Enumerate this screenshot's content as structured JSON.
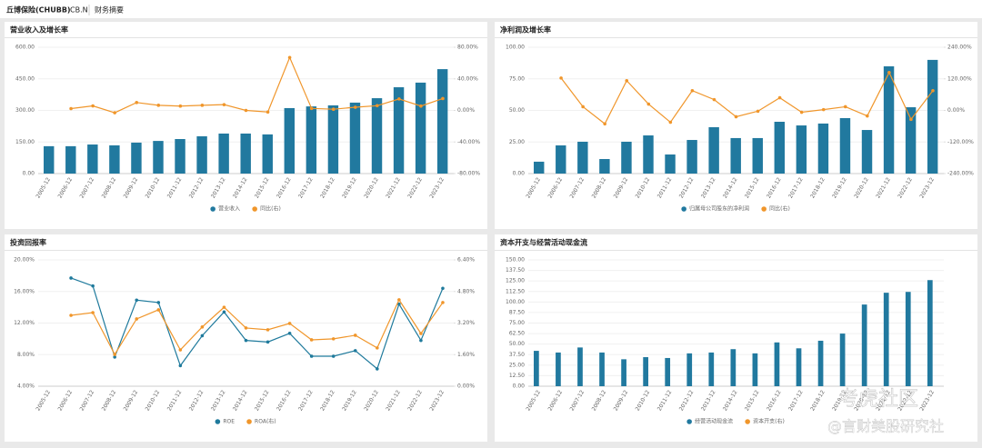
{
  "header": {
    "company": "丘博保险(CHUBB)",
    "ticker": "CB.N",
    "tab": "财务摘要"
  },
  "watermark": {
    "line1": "考虎社区",
    "line2": "@言财美股研究社"
  },
  "chart_data": [
    {
      "type": "combo",
      "title": "营业收入及增长率",
      "categories": [
        "2005-12",
        "2006-12",
        "2007-12",
        "2008-12",
        "2009-12",
        "2010-12",
        "2011-12",
        "2012-12",
        "2013-12",
        "2014-12",
        "2015-12",
        "2016-12",
        "2017-12",
        "2018-12",
        "2019-12",
        "2020-12",
        "2021-12",
        "2022-12",
        "2023-12"
      ],
      "series": [
        {
          "name": "营业收入",
          "color": "#21799f",
          "axis": "y",
          "values": [
            130,
            130,
            138,
            134,
            147,
            155,
            164,
            177,
            190,
            190,
            186,
            311,
            319,
            324,
            337,
            358,
            410,
            432,
            496
          ]
        },
        {
          "name": "同比(右)",
          "color": "#f0962b",
          "axis": "y2",
          "values": [
            null,
            2.3,
            5.7,
            -3,
            10,
            6.5,
            5.5,
            6.5,
            7.3,
            0,
            -2,
            67,
            2.5,
            1.5,
            4,
            6,
            14.5,
            5.5,
            15
          ]
        }
      ],
      "ylim": [
        0,
        600
      ],
      "yticks": [
        {
          "value": 0,
          "label": "0.00"
        },
        {
          "value": 150,
          "label": "150.00"
        },
        {
          "value": 300,
          "label": "300.00"
        },
        {
          "value": 450,
          "label": "450.00"
        },
        {
          "value": 600,
          "label": "600.00"
        }
      ],
      "y2lim": [
        -80,
        80
      ],
      "y2ticks": [
        {
          "value": -80,
          "label": "-80.00%"
        },
        {
          "value": -40,
          "label": "-40.00%"
        },
        {
          "value": 0,
          "label": "0.00%"
        },
        {
          "value": 40,
          "label": "40.00%"
        },
        {
          "value": 80,
          "label": "80.00%"
        }
      ],
      "grid": true
    },
    {
      "type": "combo",
      "title": "净利润及增长率",
      "categories": [
        "2005-12",
        "2006-12",
        "2007-12",
        "2008-12",
        "2009-12",
        "2010-12",
        "2011-12",
        "2012-12",
        "2013-12",
        "2014-12",
        "2015-12",
        "2016-12",
        "2017-12",
        "2018-12",
        "2019-12",
        "2020-12",
        "2021-12",
        "2022-12",
        "2023-12"
      ],
      "series": [
        {
          "name": "归属母公司股东的净利润",
          "color": "#21799f",
          "axis": "y",
          "values": [
            9.4,
            22.3,
            25.2,
            11.5,
            25.2,
            30.2,
            15.1,
            26.6,
            36.7,
            28.1,
            28.1,
            41,
            38.1,
            39.6,
            43.9,
            34.5,
            84.9,
            52.5,
            90
          ]
        },
        {
          "name": "同比(右)",
          "color": "#f0962b",
          "axis": "y2",
          "values": [
            null,
            123,
            14,
            -51,
            113,
            24,
            -45,
            75,
            41,
            -24,
            -3,
            48,
            -7,
            3,
            14,
            -21,
            144,
            -34,
            75
          ]
        }
      ],
      "ylim": [
        0,
        100
      ],
      "yticks": [
        {
          "value": 0,
          "label": "0.00"
        },
        {
          "value": 25,
          "label": "25.00"
        },
        {
          "value": 50,
          "label": "50.00"
        },
        {
          "value": 75,
          "label": "75.00"
        },
        {
          "value": 100,
          "label": "100.00"
        }
      ],
      "y2lim": [
        -240,
        240
      ],
      "y2ticks": [
        {
          "value": -240,
          "label": "-240.00%"
        },
        {
          "value": -120,
          "label": "-120.00%"
        },
        {
          "value": 0,
          "label": "0.00%"
        },
        {
          "value": 120,
          "label": "120.00%"
        },
        {
          "value": 240,
          "label": "240.00%"
        }
      ],
      "grid": true
    },
    {
      "type": "line",
      "title": "投资回报率",
      "categories": [
        "2005-12",
        "2006-12",
        "2007-12",
        "2008-12",
        "2009-12",
        "2010-12",
        "2011-12",
        "2012-12",
        "2013-12",
        "2014-12",
        "2015-12",
        "2016-12",
        "2017-12",
        "2018-12",
        "2019-12",
        "2020-12",
        "2021-12",
        "2022-12",
        "2023-12"
      ],
      "series": [
        {
          "name": "ROE",
          "color": "#1f7a9c",
          "axis": "y",
          "values": [
            null,
            17.7,
            16.7,
            7.7,
            14.9,
            14.6,
            6.6,
            10.4,
            13.4,
            9.8,
            9.6,
            10.7,
            7.8,
            7.8,
            8.5,
            6.2,
            14.4,
            9.8,
            16.4
          ]
        },
        {
          "name": "ROA(右)",
          "color": "#f0962b",
          "axis": "y2",
          "values": [
            null,
            3.59,
            3.73,
            1.61,
            3.41,
            3.87,
            1.84,
            3.0,
            4.0,
            2.95,
            2.86,
            3.18,
            2.35,
            2.4,
            2.58,
            1.94,
            4.38,
            2.67,
            4.24
          ]
        }
      ],
      "ylim": [
        4,
        20
      ],
      "yticks": [
        {
          "value": 4,
          "label": "4.00%"
        },
        {
          "value": 8,
          "label": "8.00%"
        },
        {
          "value": 12,
          "label": "12.00%"
        },
        {
          "value": 16,
          "label": "16.00%"
        },
        {
          "value": 20,
          "label": "20.00%"
        }
      ],
      "y2lim": [
        0,
        6.4
      ],
      "y2ticks": [
        {
          "value": 0,
          "label": "0.00%"
        },
        {
          "value": 1.6,
          "label": "1.60%"
        },
        {
          "value": 3.2,
          "label": "3.20%"
        },
        {
          "value": 4.8,
          "label": "4.80%"
        },
        {
          "value": 6.4,
          "label": "6.40%"
        }
      ],
      "grid": true
    },
    {
      "type": "bar",
      "title": "资本开支与经营活动现金流",
      "categories": [
        "2005-12",
        "2006-12",
        "2007-12",
        "2008-12",
        "2009-12",
        "2010-12",
        "2011-12",
        "2012-12",
        "2013-12",
        "2014-12",
        "2015-12",
        "2016-12",
        "2017-12",
        "2018-12",
        "2019-12",
        "2020-12",
        "2021-12",
        "2022-12",
        "2023-12"
      ],
      "series": [
        {
          "name": "经营活动现金流",
          "color": "#21799f",
          "axis": "y",
          "values": [
            42,
            40,
            46,
            40,
            32,
            34.5,
            33.5,
            39,
            40,
            44,
            39,
            52,
            45,
            54,
            62.5,
            97,
            111,
            112,
            126
          ]
        },
        {
          "name": "资本开支(右)",
          "color": "#f0962b",
          "axis": "y",
          "values": [
            null,
            null,
            null,
            null,
            null,
            null,
            null,
            null,
            null,
            null,
            null,
            null,
            null,
            null,
            null,
            null,
            null,
            null,
            null
          ]
        }
      ],
      "ylim": [
        0,
        150
      ],
      "yticks": [
        {
          "value": 0,
          "label": "0.00"
        },
        {
          "value": 12.5,
          "label": "12.50"
        },
        {
          "value": 25,
          "label": "25.00"
        },
        {
          "value": 37.5,
          "label": "37.50"
        },
        {
          "value": 50,
          "label": "50.00"
        },
        {
          "value": 62.5,
          "label": "62.50"
        },
        {
          "value": 75,
          "label": "75.00"
        },
        {
          "value": 87.5,
          "label": "87.50"
        },
        {
          "value": 100,
          "label": "100.00"
        },
        {
          "value": 112.5,
          "label": "112.50"
        },
        {
          "value": 125,
          "label": "125.00"
        },
        {
          "value": 137.5,
          "label": "137.50"
        },
        {
          "value": 150,
          "label": "150.00"
        }
      ],
      "grid": true
    }
  ]
}
